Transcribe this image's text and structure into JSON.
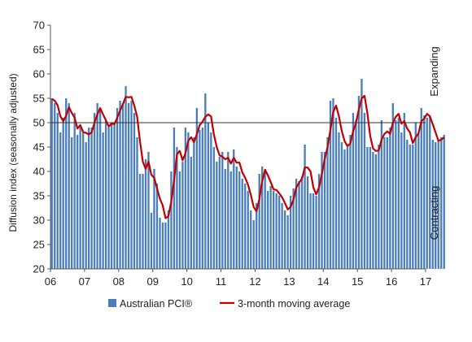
{
  "chart_data": {
    "type": "bar",
    "ylabel": "Diffusion index (seasonally adjusted)",
    "ylim": [
      20,
      70
    ],
    "yticks": [
      20,
      25,
      30,
      35,
      40,
      45,
      50,
      55,
      60,
      65,
      70
    ],
    "xticks": [
      "06",
      "07",
      "08",
      "09",
      "10",
      "11",
      "12",
      "13",
      "14",
      "15",
      "16",
      "17"
    ],
    "x_start_year": 2006,
    "reference_line": 50,
    "right_labels": {
      "upper": "Expanding",
      "lower": "Contracting"
    },
    "series": [
      {
        "name": "Australian PCI®",
        "kind": "bar",
        "color": "#4a7ebb",
        "values": [
          55.0,
          54.0,
          52.0,
          48.0,
          51.0,
          55.0,
          54.0,
          47.0,
          52.0,
          47.5,
          49.0,
          48.0,
          46.0,
          49.0,
          49.0,
          52.0,
          54.0,
          53.0,
          48.0,
          50.5,
          49.0,
          50.0,
          50.0,
          53.0,
          54.5,
          54.0,
          57.5,
          54.0,
          54.5,
          52.0,
          47.0,
          39.5,
          39.5,
          42.5,
          44.0,
          31.5,
          40.5,
          37.5,
          30.5,
          29.5,
          29.5,
          32.0,
          40.0,
          49.0,
          45.0,
          40.0,
          42.0,
          49.0,
          48.0,
          43.0,
          47.0,
          53.0,
          48.5,
          49.0,
          56.0,
          50.0,
          48.0,
          45.0,
          42.0,
          43.0,
          44.0,
          40.5,
          44.0,
          40.0,
          44.5,
          41.0,
          40.0,
          38.5,
          37.5,
          36.0,
          32.0,
          30.0,
          33.5,
          39.5,
          41.0,
          40.5,
          36.0,
          37.0,
          36.0,
          35.5,
          35.0,
          33.5,
          32.0,
          31.0,
          35.0,
          36.5,
          38.5,
          38.0,
          39.0,
          45.5,
          39.0,
          35.5,
          35.5,
          35.0,
          39.5,
          44.0,
          44.0,
          47.0,
          54.5,
          55.0,
          51.0,
          48.0,
          46.0,
          44.5,
          45.0,
          47.5,
          52.0,
          50.5,
          55.5,
          59.0,
          52.0,
          45.0,
          45.0,
          44.0,
          43.5,
          45.5,
          50.5,
          47.0,
          47.0,
          49.0,
          54.0,
          50.5,
          51.0,
          48.0,
          52.0,
          46.5,
          45.5,
          45.5,
          50.0,
          48.0,
          53.0,
          51.5,
          51.0,
          51.5,
          46.5,
          46.0,
          46.5,
          47.0,
          47.5
        ]
      },
      {
        "name": "3-month moving average",
        "kind": "line",
        "color": "#c00000",
        "values": [
          54.9,
          54.5,
          53.6,
          51.3,
          50.3,
          51.4,
          53.2,
          52.0,
          51.0,
          48.8,
          49.5,
          48.1,
          47.9,
          47.6,
          48.0,
          50.0,
          51.7,
          53.0,
          51.7,
          50.5,
          49.2,
          49.8,
          49.7,
          51.0,
          52.5,
          53.8,
          55.3,
          55.2,
          55.3,
          53.5,
          51.2,
          46.2,
          42.0,
          40.5,
          42.0,
          39.3,
          38.7,
          36.5,
          34.4,
          33.0,
          30.4,
          30.8,
          33.8,
          38.2,
          43.5,
          44.2,
          42.3,
          43.7,
          46.3,
          47.0,
          46.0,
          47.6,
          49.5,
          50.2,
          51.2,
          51.7,
          51.3,
          47.6,
          45.0,
          43.3,
          43.0,
          42.5,
          42.8,
          41.6,
          42.8,
          41.8,
          41.8,
          39.8,
          38.7,
          37.3,
          35.2,
          32.7,
          31.8,
          34.3,
          38.0,
          40.3,
          39.2,
          37.8,
          36.3,
          36.2,
          35.5,
          34.7,
          33.5,
          32.2,
          32.7,
          34.2,
          36.7,
          37.7,
          38.5,
          40.8,
          40.8,
          40.0,
          36.7,
          35.3,
          36.7,
          39.5,
          42.5,
          45.0,
          48.5,
          52.2,
          53.5,
          51.3,
          48.3,
          46.2,
          45.2,
          45.7,
          48.2,
          50.0,
          52.7,
          55.0,
          55.5,
          52.0,
          47.3,
          44.7,
          44.2,
          44.3,
          46.5,
          47.7,
          48.2,
          47.7,
          50.0,
          51.2,
          51.8,
          49.8,
          50.3,
          48.8,
          48.0,
          45.8,
          47.0,
          47.8,
          50.3,
          50.8,
          51.8,
          51.3,
          49.7,
          48.0,
          46.3,
          46.5,
          47.0
        ]
      }
    ],
    "legend": {
      "position": "bottom"
    }
  }
}
